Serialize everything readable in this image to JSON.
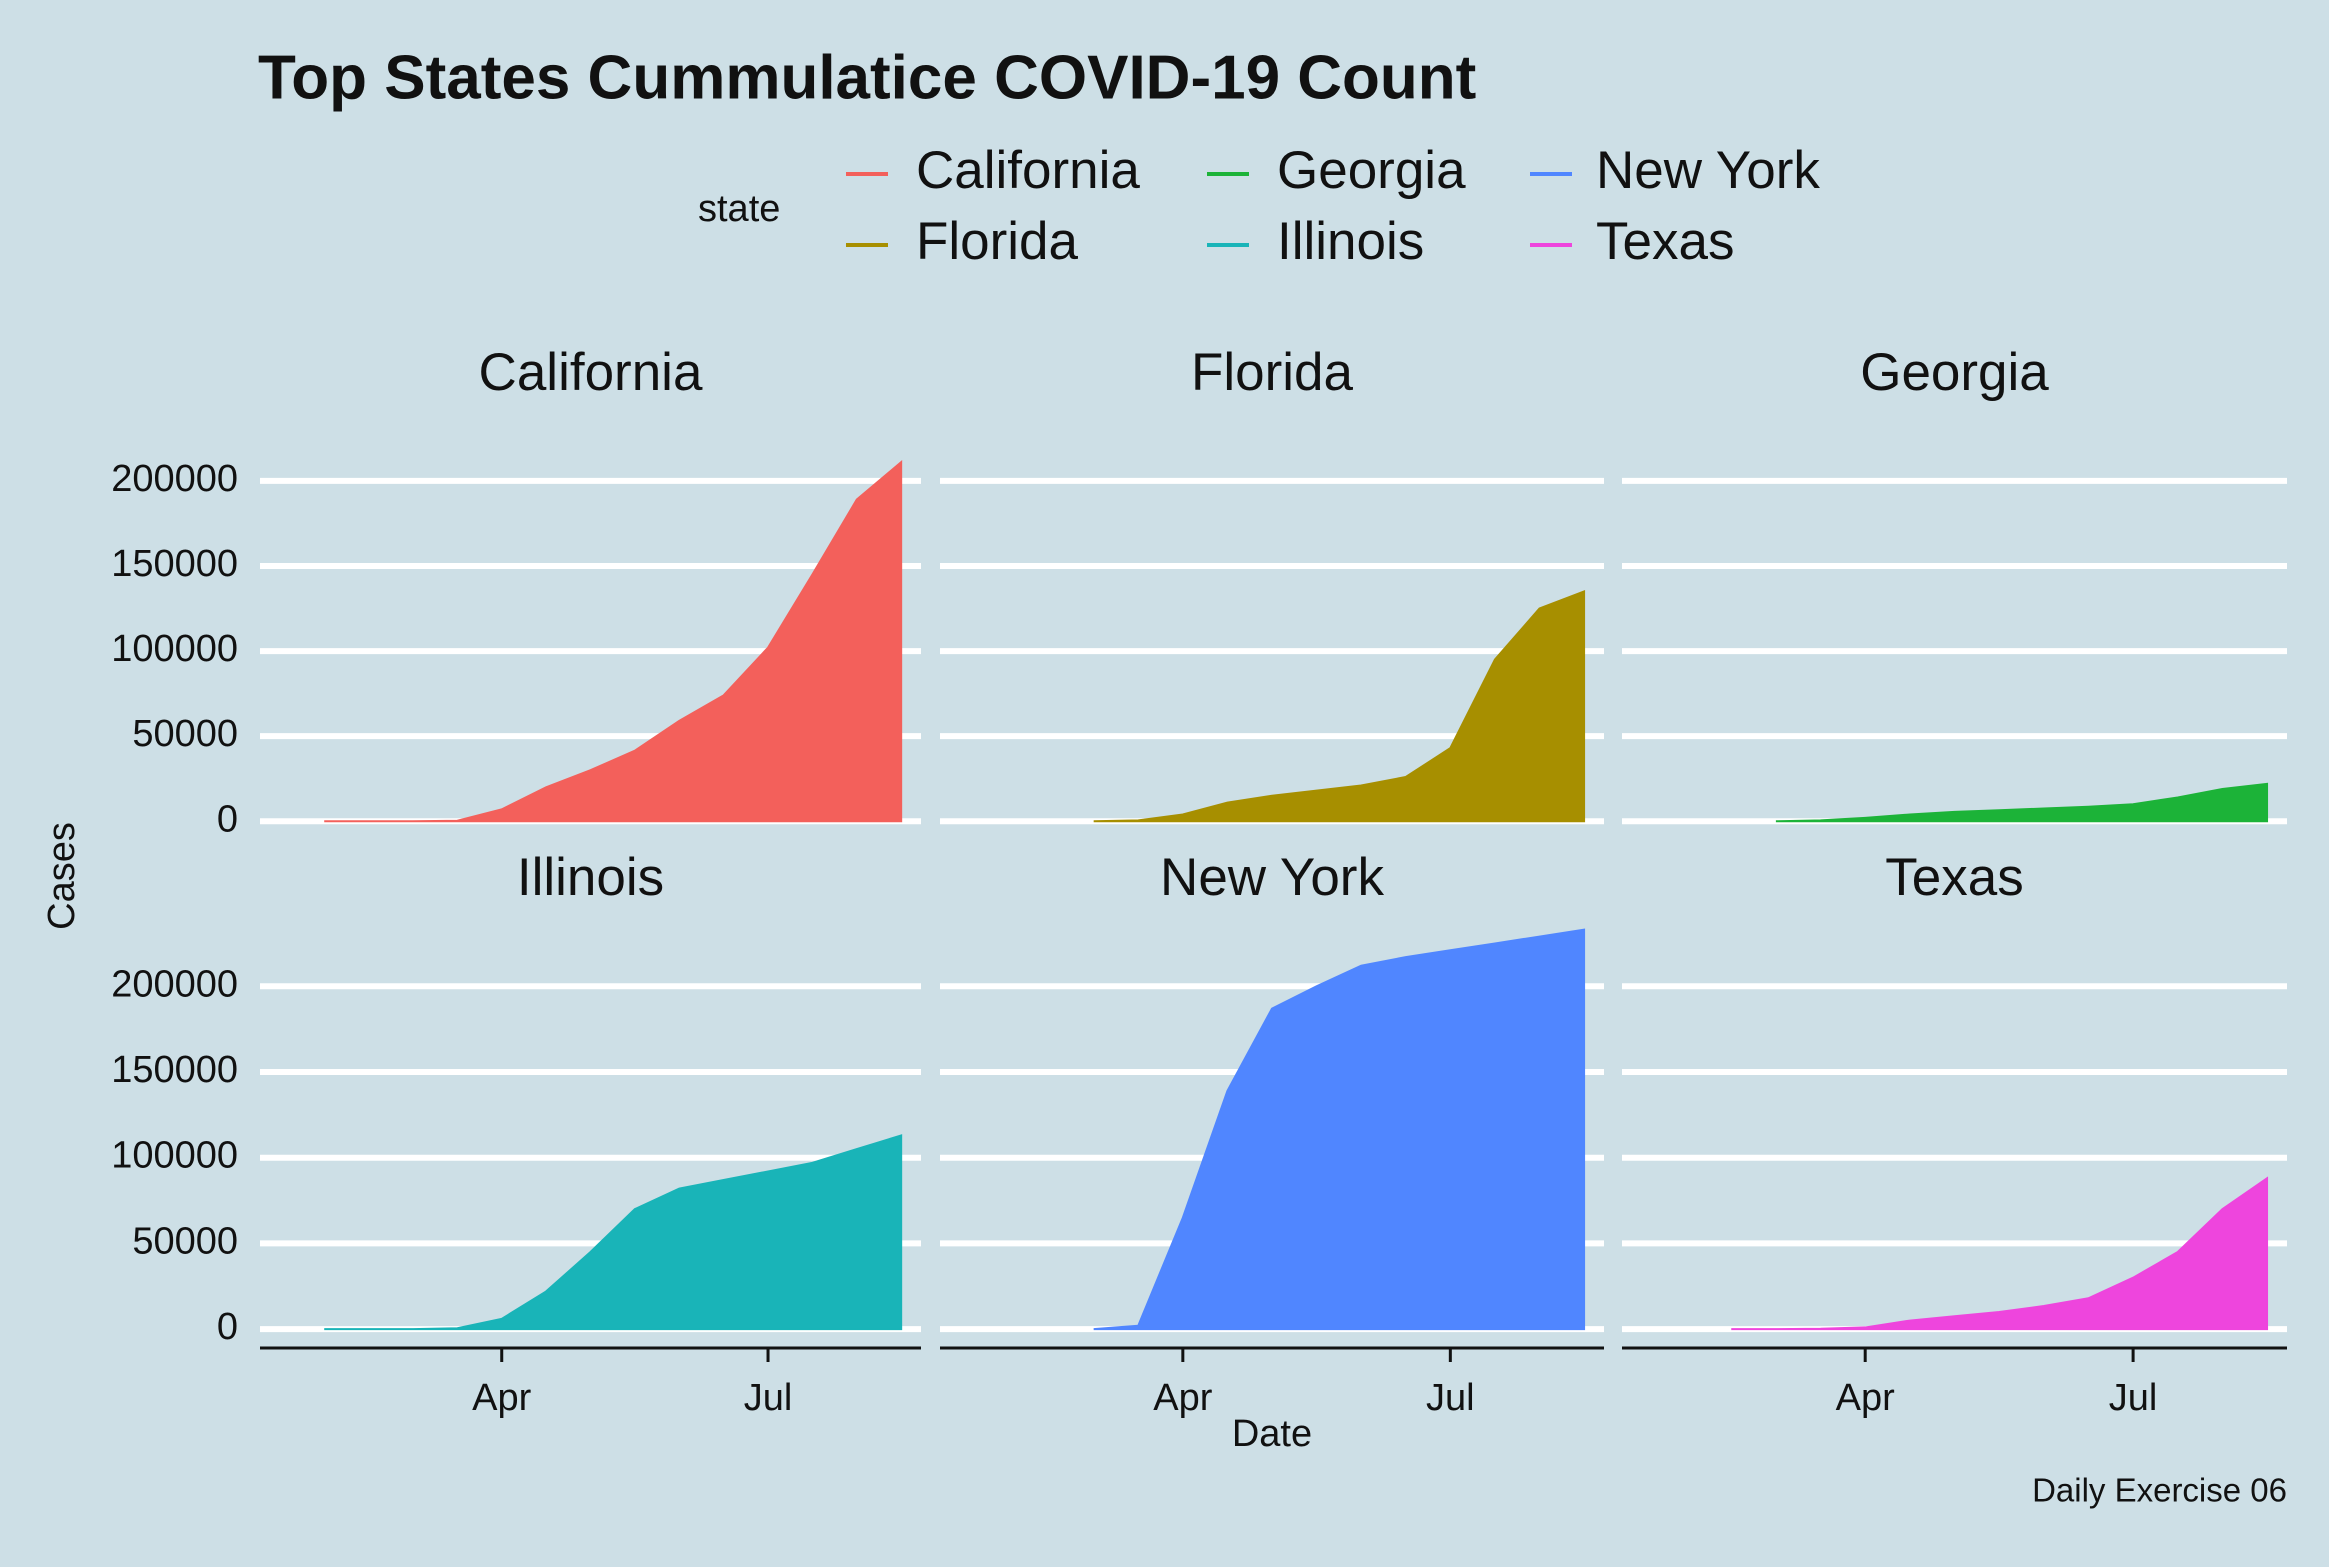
{
  "chart_data": {
    "type": "area",
    "title": "Top States Cummulatice COVID-19 Count",
    "caption": "Daily Exercise 06",
    "xlabel": "Date",
    "ylabel": "Cases",
    "legend_title": "state",
    "legend_position": "top",
    "grid": true,
    "categories": [
      null,
      null,
      null,
      null,
      null,
      "Apr",
      null,
      null,
      null,
      null,
      null,
      "Jul",
      null,
      null,
      null
    ],
    "ylim": [
      -11000,
      234000
    ],
    "yticks": [
      0,
      50000,
      100000,
      150000,
      200000
    ],
    "series": [
      {
        "name": "California",
        "color": "#f3605b",
        "values": [
          null,
          0,
          0,
          0,
          300,
          7000,
          20000,
          30000,
          41500,
          59000,
          74000,
          102000,
          145000,
          189000,
          211000
        ]
      },
      {
        "name": "Florida",
        "color": "#a78f00",
        "values": [
          null,
          null,
          null,
          0,
          500,
          4000,
          11000,
          15000,
          18000,
          21000,
          26000,
          43000,
          95000,
          125000,
          135000
        ]
      },
      {
        "name": "Georgia",
        "color": "#1cb338",
        "values": [
          null,
          null,
          null,
          0,
          500,
          2000,
          4000,
          5500,
          6500,
          7500,
          8500,
          10000,
          14000,
          19000,
          22000
        ]
      },
      {
        "name": "Illinois",
        "color": "#19b4b8",
        "values": [
          null,
          0,
          0,
          0,
          500,
          6000,
          22000,
          45000,
          70000,
          82000,
          87000,
          92000,
          97000,
          105000,
          113000
        ]
      },
      {
        "name": "New York",
        "color": "#5086ff",
        "values": [
          null,
          null,
          null,
          0,
          2000,
          65000,
          139000,
          187000,
          200000,
          212000,
          217000,
          221000,
          225000,
          229000,
          233000
        ]
      },
      {
        "name": "Texas",
        "color": "#ee45dd",
        "values": [
          null,
          null,
          0,
          0,
          200,
          1000,
          5000,
          7500,
          10000,
          13500,
          18000,
          30000,
          45000,
          70000,
          88000
        ]
      }
    ]
  }
}
